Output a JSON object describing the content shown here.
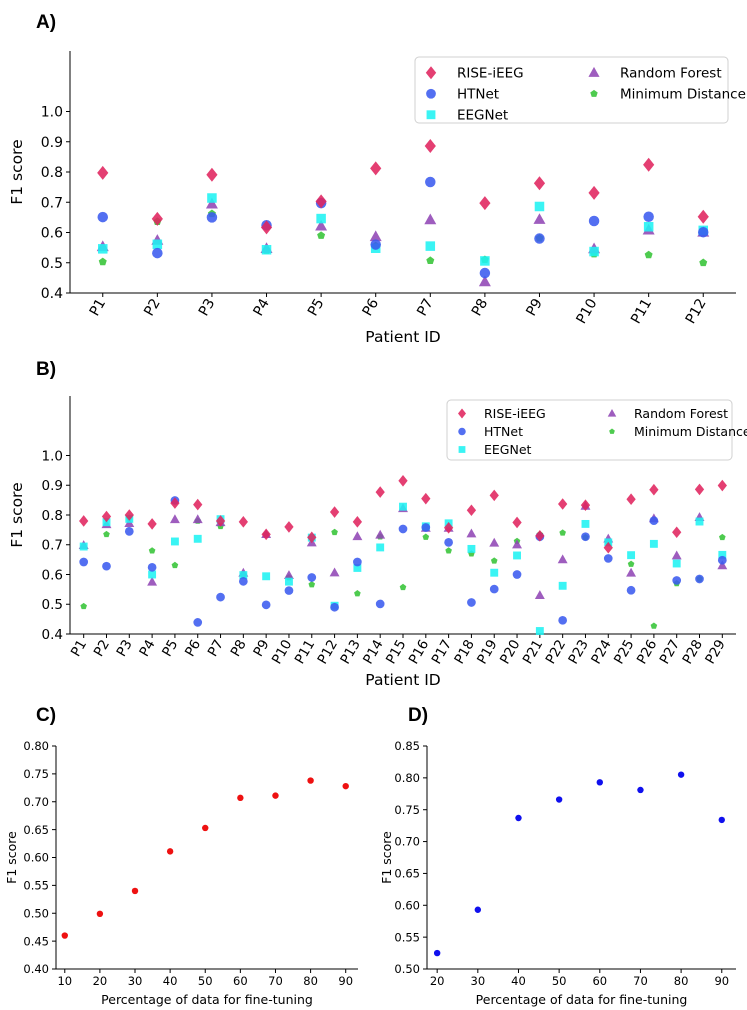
{
  "colors": {
    "RISE-iEEG": "#e0245e",
    "HTNet": "#3b5bef",
    "EEGNet": "#1ff2f2",
    "Random Forest": "#9147b5",
    "Minimum Distance": "#35c437",
    "panelC_points": "#ee1111",
    "panelD_points": "#1010ee"
  },
  "chart_data": [
    {
      "panel": "A)",
      "type": "scatter",
      "xlabel": "Patient ID",
      "ylabel": "F1 score",
      "categories": [
        "P1",
        "P2",
        "P3",
        "P4",
        "P5",
        "P6",
        "P7",
        "P8",
        "P9",
        "P10",
        "P11",
        "P12"
      ],
      "yticks": [
        "0.4",
        "0.5",
        "0.6",
        "0.7",
        "0.8",
        "0.9",
        "1.0"
      ],
      "ylim": [
        0.4,
        1.2
      ],
      "legend_position": "top-right",
      "series": [
        {
          "name": "RISE-iEEG",
          "marker": "diamond",
          "values": [
            0.797,
            0.645,
            0.791,
            0.617,
            0.703,
            0.812,
            0.886,
            0.697,
            0.763,
            0.731,
            0.824,
            0.652
          ]
        },
        {
          "name": "HTNet",
          "marker": "circle",
          "values": [
            0.651,
            0.532,
            0.65,
            0.624,
            0.697,
            0.56,
            0.767,
            0.466,
            0.58,
            0.638,
            0.652,
            0.601
          ]
        },
        {
          "name": "EEGNet",
          "marker": "square",
          "values": [
            0.546,
            0.561,
            0.714,
            0.543,
            0.646,
            0.548,
            0.555,
            0.506,
            0.686,
            0.537,
            0.619,
            0.607
          ]
        },
        {
          "name": "Random Forest",
          "marker": "triangle",
          "values": [
            0.553,
            0.574,
            0.694,
            0.547,
            0.621,
            0.586,
            0.642,
            0.437,
            0.643,
            0.546,
            0.608,
            0.601
          ]
        },
        {
          "name": "Minimum Distance",
          "marker": "pentagon",
          "values": [
            0.503,
            0.636,
            0.662,
            0.541,
            0.59,
            0.556,
            0.507,
            0.51,
            0.581,
            0.529,
            0.526,
            0.5
          ]
        }
      ]
    },
    {
      "panel": "B)",
      "type": "scatter",
      "xlabel": "Patient ID",
      "ylabel": "F1 score",
      "categories": [
        "P1",
        "P2",
        "P3",
        "P4",
        "P5",
        "P6",
        "P7",
        "P8",
        "P9",
        "P10",
        "P11",
        "P12",
        "P13",
        "P14",
        "P15",
        "P16",
        "P17",
        "P18",
        "P19",
        "P20",
        "P21",
        "P22",
        "P23",
        "P24",
        "P25",
        "P26",
        "P27",
        "P28",
        "P29"
      ],
      "yticks": [
        "0.4",
        "0.5",
        "0.6",
        "0.7",
        "0.8",
        "0.9",
        "1.0"
      ],
      "ylim": [
        0.4,
        1.2
      ],
      "legend_position": "top-right",
      "series": [
        {
          "name": "RISE-iEEG",
          "marker": "diamond",
          "values": [
            0.78,
            0.795,
            0.8,
            0.77,
            0.84,
            0.835,
            0.78,
            0.777,
            0.735,
            0.76,
            0.725,
            0.81,
            0.777,
            0.877,
            0.915,
            0.855,
            0.757,
            0.816,
            0.866,
            0.775,
            0.73,
            0.837,
            0.833,
            0.69,
            0.853,
            0.885,
            0.742,
            0.886,
            0.899
          ]
        },
        {
          "name": "HTNet",
          "marker": "circle",
          "values": [
            0.642,
            0.628,
            0.745,
            0.624,
            0.849,
            0.439,
            0.524,
            0.577,
            0.498,
            0.546,
            0.59,
            0.49,
            0.642,
            0.501,
            0.753,
            0.758,
            0.708,
            0.506,
            0.551,
            0.6,
            0.727,
            0.446,
            0.727,
            0.654,
            0.547,
            0.781,
            0.58,
            0.585,
            0.648
          ]
        },
        {
          "name": "EEGNet",
          "marker": "square",
          "values": [
            0.694,
            0.776,
            0.787,
            0.6,
            0.711,
            0.72,
            0.786,
            0.598,
            0.594,
            0.576,
            0.724,
            0.495,
            0.622,
            0.691,
            0.828,
            0.762,
            0.772,
            0.686,
            0.606,
            0.664,
            0.41,
            0.562,
            0.77,
            0.708,
            0.665,
            0.703,
            0.637,
            0.778,
            0.666
          ]
        },
        {
          "name": "Random Forest",
          "marker": "triangle",
          "values": [
            0.698,
            0.768,
            0.772,
            0.575,
            0.785,
            0.785,
            0.775,
            0.605,
            0.735,
            0.597,
            0.707,
            0.606,
            0.728,
            0.733,
            0.822,
            0.756,
            0.756,
            0.737,
            0.706,
            0.7,
            0.53,
            0.65,
            0.83,
            0.72,
            0.605,
            0.788,
            0.663,
            0.792,
            0.63
          ]
        },
        {
          "name": "Minimum Distance",
          "marker": "pentagon",
          "values": [
            0.493,
            0.735,
            0.79,
            0.68,
            0.631,
            0.78,
            0.762,
            0.6,
            0.735,
            0.59,
            0.566,
            0.742,
            0.536,
            0.727,
            0.557,
            0.726,
            0.68,
            0.67,
            0.646,
            0.712,
            0.735,
            0.74,
            0.725,
            0.705,
            0.635,
            0.427,
            0.57,
            0.585,
            0.725
          ]
        }
      ]
    },
    {
      "panel": "C)",
      "type": "scatter",
      "xlabel": "Percentage of data for fine-tuning",
      "ylabel": "F1 score",
      "x": [
        10,
        20,
        30,
        40,
        50,
        60,
        70,
        80,
        90
      ],
      "y": [
        0.46,
        0.499,
        0.54,
        0.611,
        0.653,
        0.707,
        0.711,
        0.738,
        0.728
      ],
      "xticks": [
        "10",
        "20",
        "30",
        "40",
        "50",
        "60",
        "70",
        "80",
        "90"
      ],
      "yticks": [
        "0.40",
        "0.45",
        "0.50",
        "0.55",
        "0.60",
        "0.65",
        "0.70",
        "0.75",
        "0.80"
      ],
      "xlim": [
        7.5,
        93.5
      ],
      "ylim": [
        0.4,
        0.8
      ]
    },
    {
      "panel": "D)",
      "type": "scatter",
      "xlabel": "Percentage of data for fine-tuning",
      "ylabel": "F1 score",
      "x": [
        20,
        30,
        40,
        50,
        60,
        70,
        80,
        90
      ],
      "y": [
        0.525,
        0.593,
        0.737,
        0.766,
        0.793,
        0.781,
        0.805,
        0.734
      ],
      "xticks": [
        "20",
        "30",
        "40",
        "50",
        "60",
        "70",
        "80",
        "90"
      ],
      "yticks": [
        "0.50",
        "0.55",
        "0.60",
        "0.65",
        "0.70",
        "0.75",
        "0.80",
        "0.85"
      ],
      "xlim": [
        17.5,
        93.5
      ],
      "ylim": [
        0.5,
        0.85
      ]
    }
  ]
}
